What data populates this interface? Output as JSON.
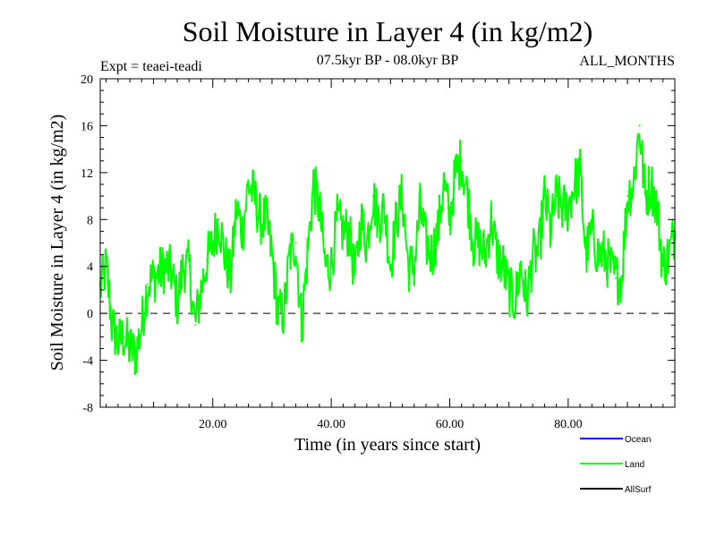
{
  "chart_data": {
    "type": "line",
    "title": "Soil Moisture in Layer 4 (in kg/m2)",
    "subtitle_left": "Expt = teaei-teadi",
    "subtitle_center": "07.5kyr BP - 08.0kyr BP",
    "subtitle_right": "ALL_MONTHS",
    "xlabel": "Time (in years since start)",
    "ylabel": "Soil Moisture in Layer 4 (in kg/m2)",
    "xlim": [
      1,
      98
    ],
    "ylim": [
      -8,
      20
    ],
    "y_ticks": [
      -8,
      -4,
      0,
      4,
      8,
      12,
      16,
      20
    ],
    "y_tick_labels": [
      "-8",
      "-4",
      "0",
      "4",
      "8",
      "12",
      "16",
      "20"
    ],
    "x_ticks": [
      20,
      40,
      60,
      80
    ],
    "x_tick_labels": [
      "20.00",
      "40.00",
      "60.00",
      "80.00"
    ],
    "zero_line": "dashed",
    "legend": [
      {
        "name": "Ocean",
        "color": "#0000ff"
      },
      {
        "name": "Land",
        "color": "#00ff00"
      },
      {
        "name": "AllSurf",
        "color": "#000000"
      }
    ],
    "series": [
      {
        "name": "Land",
        "color": "#00ff00",
        "x": [
          1,
          2,
          3,
          4,
          5,
          6,
          7,
          8,
          9,
          10,
          11,
          12,
          13,
          14,
          15,
          16,
          17,
          18,
          19,
          20,
          21,
          22,
          23,
          24,
          25,
          26,
          27,
          28,
          29,
          30,
          31,
          32,
          33,
          34,
          35,
          36,
          37,
          38,
          39,
          40,
          41,
          42,
          43,
          44,
          45,
          46,
          47,
          48,
          49,
          50,
          51,
          52,
          53,
          54,
          55,
          56,
          57,
          58,
          59,
          60,
          61,
          62,
          63,
          64,
          65,
          66,
          67,
          68,
          69,
          70,
          71,
          72,
          73,
          74,
          75,
          76,
          77,
          78,
          79,
          80,
          81,
          82,
          83,
          84,
          85,
          86,
          87,
          88,
          89,
          90,
          91,
          92,
          93,
          94,
          95,
          96,
          97,
          98
        ],
        "values": [
          2,
          4,
          -1,
          -2.5,
          -2,
          -3,
          -3.5,
          -1,
          2.5,
          3,
          3.5,
          4,
          3.5,
          1,
          4,
          4,
          -1,
          2,
          4.5,
          6,
          8,
          5,
          3,
          9,
          7,
          11,
          10,
          8,
          8,
          5,
          0,
          0,
          5,
          6,
          -1,
          5,
          11,
          9,
          4,
          4,
          8,
          7,
          7,
          3,
          8,
          6,
          10,
          8,
          9,
          4,
          8,
          10,
          4,
          4,
          9,
          6,
          5,
          7,
          11,
          8,
          12,
          13,
          10,
          6,
          6,
          5,
          8,
          5,
          4,
          2,
          1,
          4,
          1,
          5,
          5,
          10,
          7,
          10,
          9,
          9,
          11,
          12,
          5,
          7,
          5,
          5,
          4,
          3,
          3,
          10,
          11,
          16,
          10,
          11,
          9,
          4,
          5,
          7
        ]
      }
    ]
  }
}
